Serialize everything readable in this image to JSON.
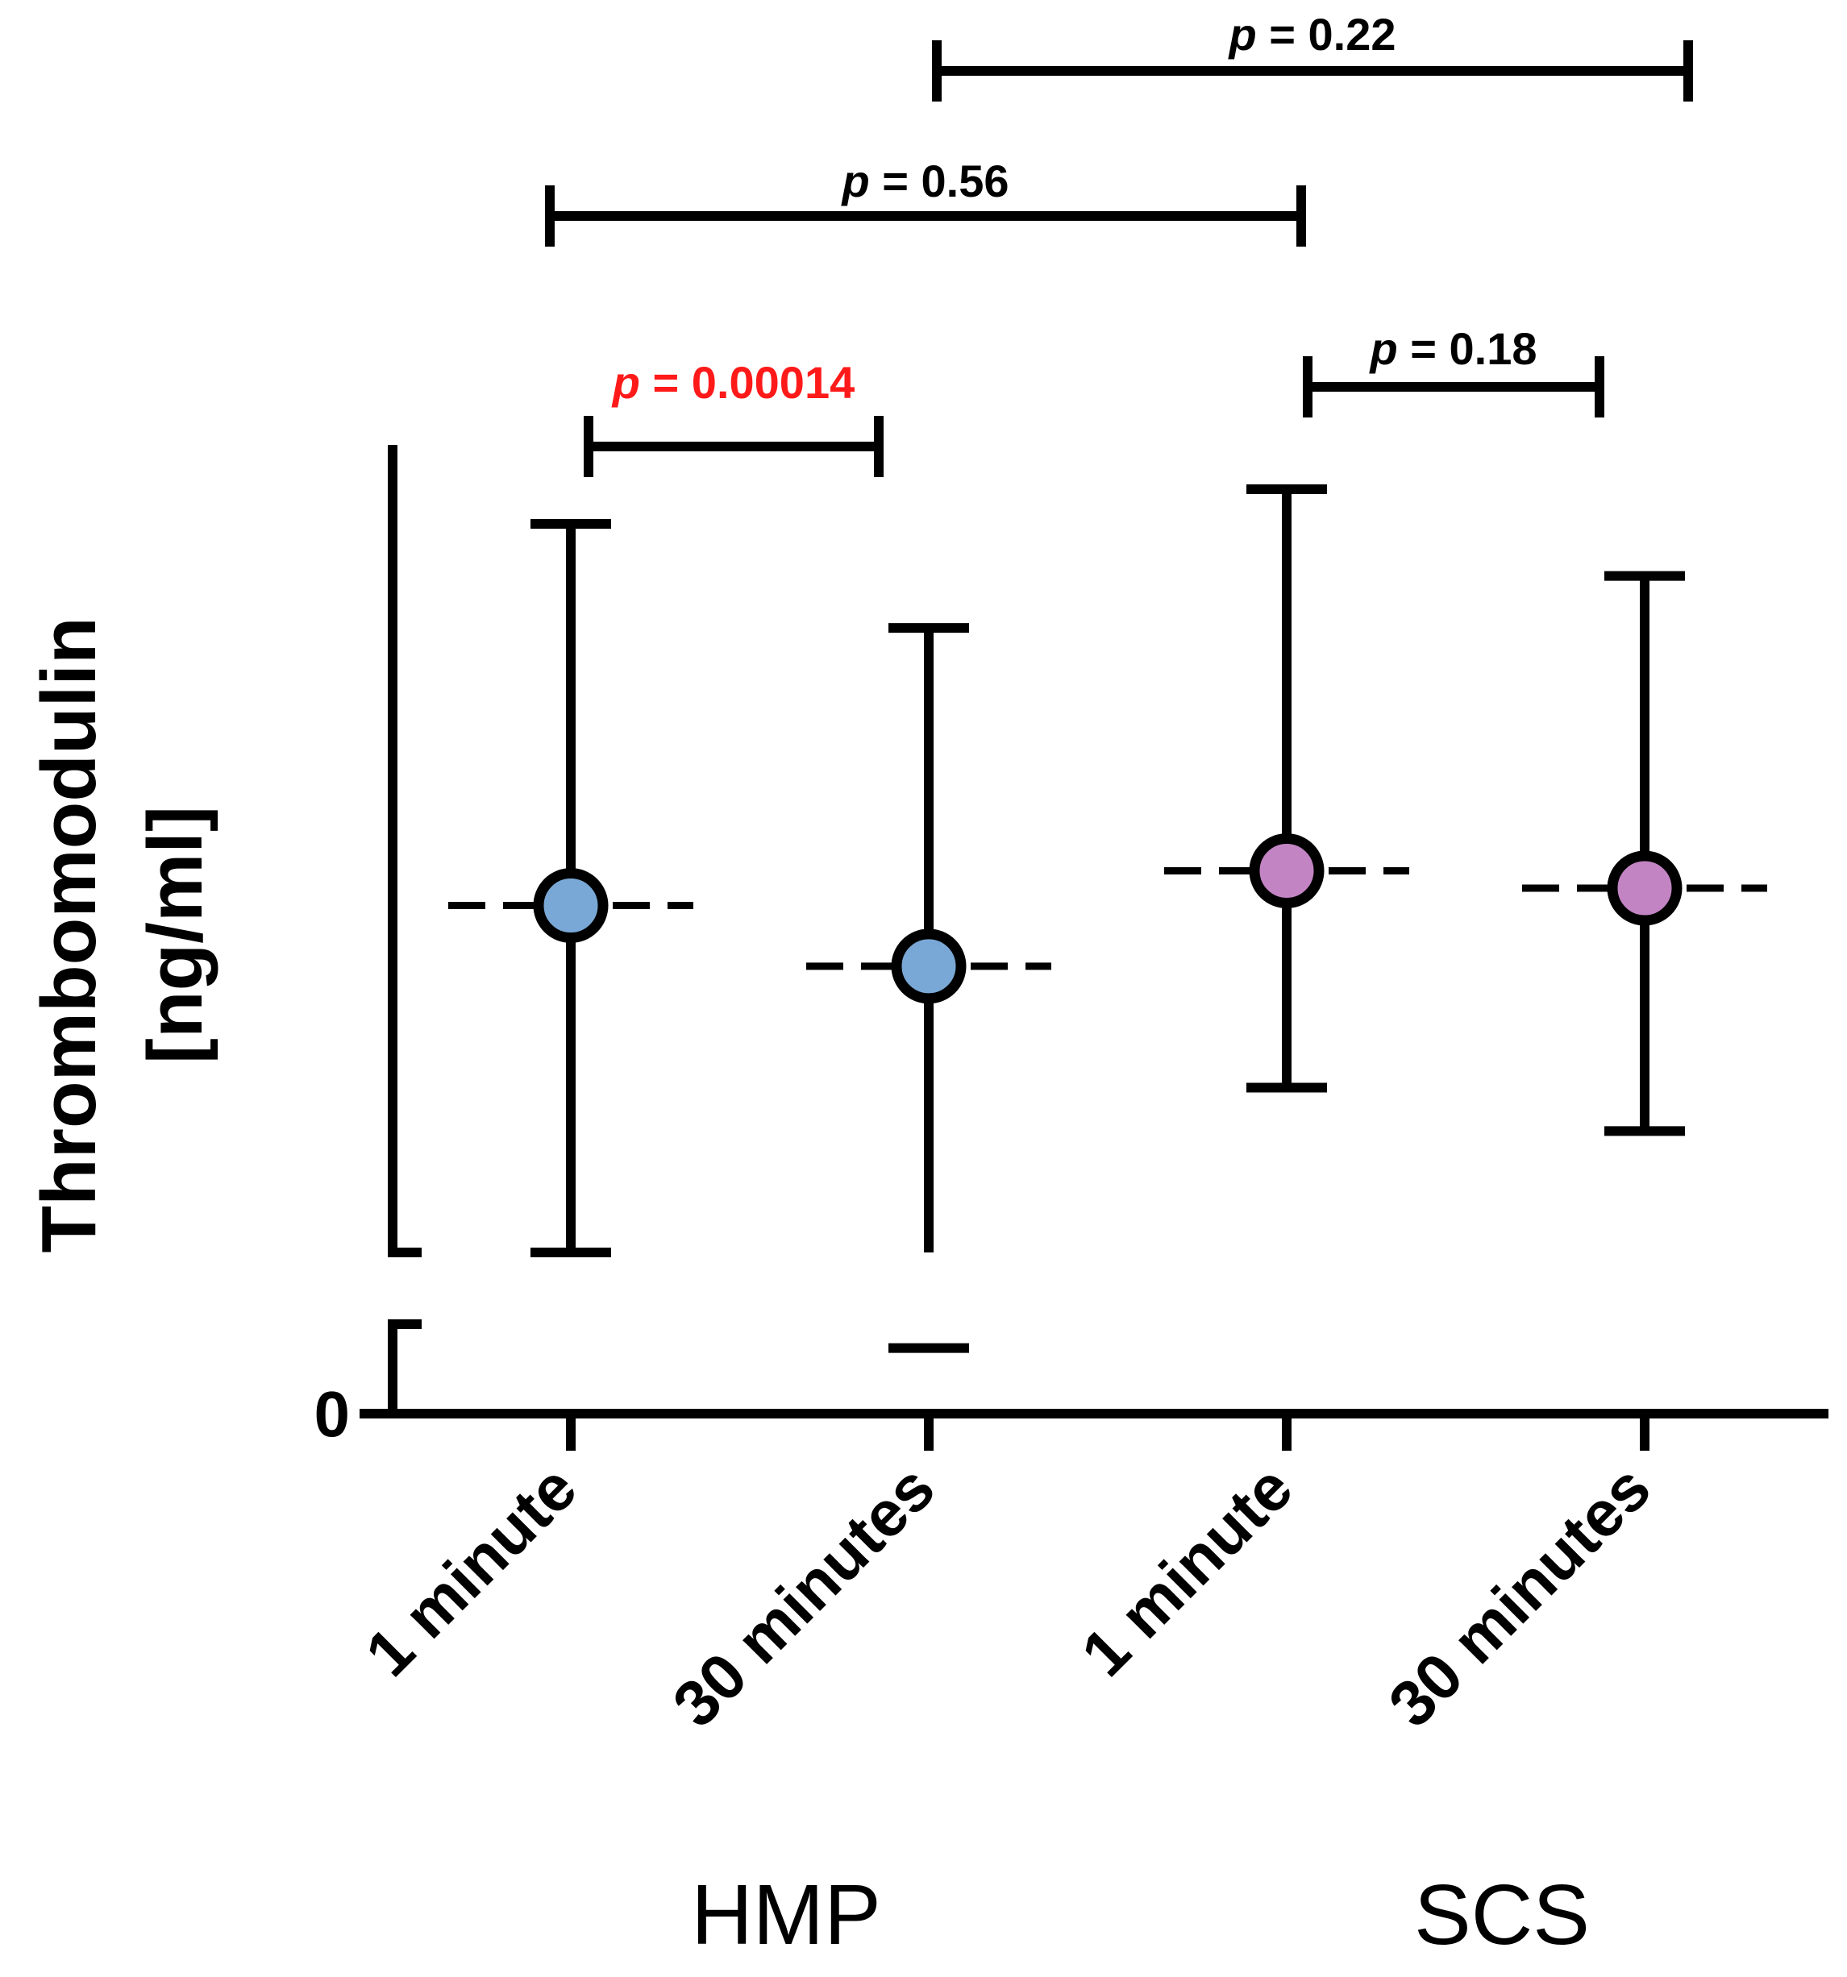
{
  "chart_data": {
    "type": "scatter",
    "description_note": "",
    "title": "",
    "xlabel": "",
    "ylabel": "Thrombomodulin\n[ng/ml]",
    "ylabel_lines": [
      "Thrombomodulin",
      "[ng/ml]"
    ],
    "y_tick_labels": [
      "0"
    ],
    "y_axis_break": true,
    "categories": [
      "1 minute",
      "30 minutes",
      "1 minute",
      "30 minutes"
    ],
    "groups": [
      {
        "name": "HMP",
        "categories": [
          0,
          1
        ]
      },
      {
        "name": "SCS",
        "categories": [
          2,
          3
        ]
      }
    ],
    "series": [
      {
        "name": "HMP",
        "color": "#7aa8d6",
        "points": [
          {
            "category": 0,
            "median": 43,
            "upper": 87,
            "lower": 3
          },
          {
            "category": 1,
            "median": 36,
            "upper": 75,
            "lower": 2.5
          }
        ]
      },
      {
        "name": "SCS",
        "color": "#c384c4",
        "points": [
          {
            "category": 2,
            "median": 47,
            "upper": 91,
            "lower": 22
          },
          {
            "category": 3,
            "median": 45,
            "upper": 81,
            "lower": 17
          }
        ]
      }
    ],
    "comparisons": [
      {
        "from": 0,
        "to": 1,
        "label_p": "p",
        "label_value": " = 0.00014",
        "color": "#ff1a1a"
      },
      {
        "from": 2,
        "to": 3,
        "label_p": "p",
        "label_value": " = 0.18",
        "color": "#000000"
      },
      {
        "from": 0,
        "to": 2,
        "label_p": "p",
        "label_value": " = 0.56",
        "color": "#000000"
      },
      {
        "from": 1,
        "to": 3,
        "label_p": "p",
        "label_value": " = 0.22",
        "color": "#000000"
      }
    ]
  }
}
